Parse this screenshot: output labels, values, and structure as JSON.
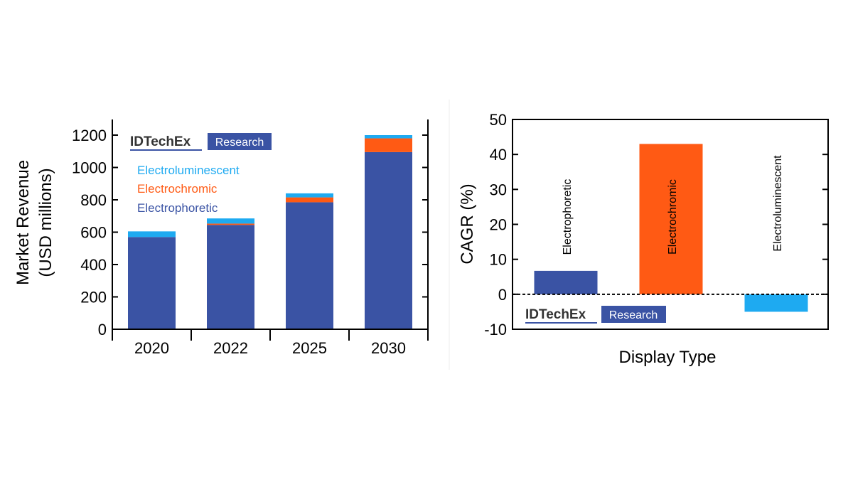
{
  "colors": {
    "electrophoretic": "#3a53a4",
    "electrochromic": "#ff5a14",
    "electroluminescent": "#1eaaf1",
    "axis": "#000000",
    "logo_box": "#3a53a4"
  },
  "logo": {
    "brand": "IDTechEx",
    "tag": "Research"
  },
  "chart_data": [
    {
      "type": "bar",
      "stacked": true,
      "categories": [
        "2020",
        "2022",
        "2025",
        "2030"
      ],
      "series": [
        {
          "name": "Electrophoretic",
          "values": [
            570,
            645,
            785,
            1095
          ]
        },
        {
          "name": "Electrochromic",
          "values": [
            0,
            8,
            30,
            85
          ]
        },
        {
          "name": "Electroluminescent",
          "values": [
            35,
            32,
            25,
            20
          ]
        }
      ],
      "ylabel_line1": "Market Revenue",
      "ylabel_line2": "(USD millions)",
      "xlabel": "",
      "ylim": [
        0,
        1300
      ],
      "yticks": [
        0,
        200,
        400,
        600,
        800,
        1000,
        1200
      ],
      "legend": [
        "Electroluminescent",
        "Electrochromic",
        "Electrophoretic"
      ],
      "legend_placement": "top-left",
      "grid": false
    },
    {
      "type": "bar",
      "categories": [
        "Electrophoretic",
        "Electrochromic",
        "Electroluminescent"
      ],
      "values": [
        6.7,
        43,
        -5
      ],
      "ylabel": "CAGR (%)",
      "xlabel": "Display Type",
      "ylim": [
        -10,
        50
      ],
      "yticks": [
        -10,
        0,
        10,
        20,
        30,
        40,
        50
      ],
      "grid": false
    }
  ]
}
